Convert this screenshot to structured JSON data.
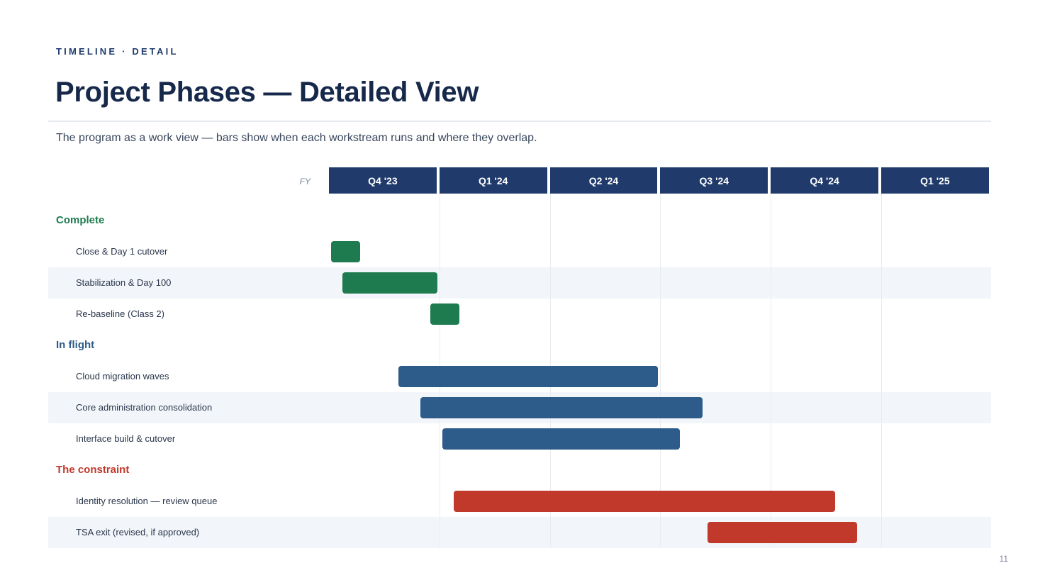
{
  "header": {
    "eyebrow": "TIMELINE · DETAIL",
    "title": "Project Phases — Detailed View",
    "subtitle": "The program as a work view — bars show when each workstream runs and where they overlap."
  },
  "timeline": {
    "fy_label": "FY",
    "quarters": [
      "Q4 '23",
      "Q1 '24",
      "Q2 '24",
      "Q3 '24",
      "Q4 '24",
      "Q1 '25"
    ],
    "groups": [
      {
        "label": "Complete",
        "color": "#1e7b4f",
        "tasks": [
          {
            "label": "Close & Day 1 cutover",
            "start": 0.02,
            "end": 0.28
          },
          {
            "label": "Stabilization & Day 100",
            "start": 0.12,
            "end": 0.98
          },
          {
            "label": "Re-baseline (Class 2)",
            "start": 0.92,
            "end": 1.18
          }
        ]
      },
      {
        "label": "In flight",
        "color": "#2d5b8a",
        "tasks": [
          {
            "label": "Cloud migration waves",
            "start": 0.63,
            "end": 2.98
          },
          {
            "label": "Core administration consolidation",
            "start": 0.83,
            "end": 3.38
          },
          {
            "label": "Interface build & cutover",
            "start": 1.03,
            "end": 3.18
          }
        ]
      },
      {
        "label": "The constraint",
        "color": "#c0392b",
        "tasks": [
          {
            "label": "Identity resolution — review queue",
            "start": 1.13,
            "end": 4.58
          },
          {
            "label": "TSA exit (revised, if approved)",
            "start": 3.43,
            "end": 4.78
          }
        ]
      }
    ]
  },
  "footer": {
    "page_number": "11"
  }
}
